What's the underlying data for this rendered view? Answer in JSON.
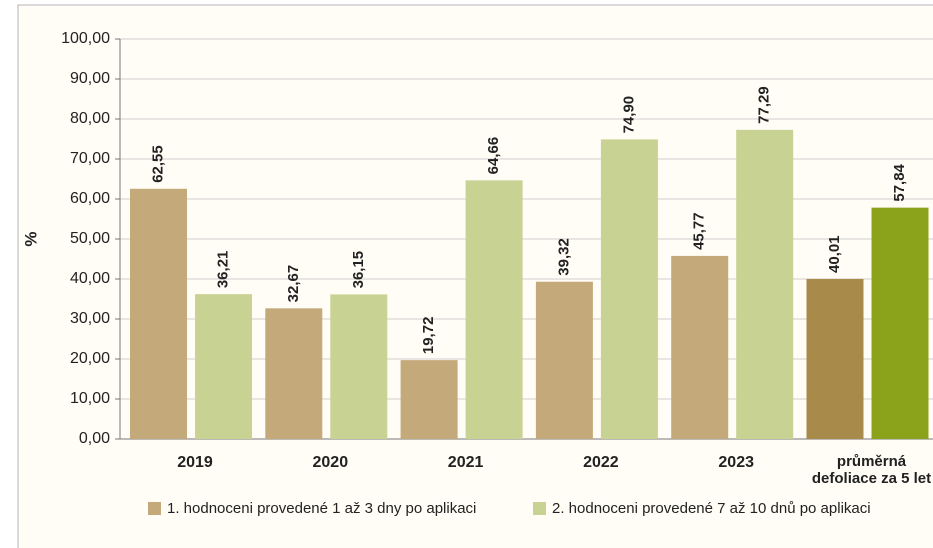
{
  "chart_data": {
    "type": "bar",
    "y_label": "%",
    "categories": [
      "2019",
      "2020",
      "2021",
      "2022",
      "2023",
      [
        "průměrná",
        "defoliace za 5 let"
      ]
    ],
    "series": [
      {
        "name": "1. hodnoceni provedené 1 až 3 dny po aplikaci",
        "color": "#c4a97b",
        "colors": [
          "#c4a97b",
          "#c4a97b",
          "#c4a97b",
          "#c4a97b",
          "#c4a97b",
          "#a88b4b"
        ],
        "values": [
          62.55,
          32.67,
          19.72,
          39.32,
          45.77,
          40.01
        ],
        "value_labels": [
          "62,55",
          "32,67",
          "19,72",
          "39,32",
          "45,77",
          "40,01"
        ]
      },
      {
        "name": "2. hodnoceni provedené 7 až 10 dnů po aplikaci",
        "color": "#c8d292",
        "colors": [
          "#c8d292",
          "#c8d292",
          "#c8d292",
          "#c8d292",
          "#c8d292",
          "#8ba31b"
        ],
        "values": [
          36.21,
          36.15,
          64.66,
          74.9,
          77.29,
          57.84
        ],
        "value_labels": [
          "36,21",
          "36,15",
          "64,66",
          "74,90",
          "77,29",
          "57,84"
        ]
      }
    ],
    "ylim": [
      0,
      100
    ],
    "yticks": [
      {
        "value": 0,
        "label": "0,00"
      },
      {
        "value": 10,
        "label": "10,00"
      },
      {
        "value": 20,
        "label": "20,00"
      },
      {
        "value": 30,
        "label": "30,00"
      },
      {
        "value": 40,
        "label": "40,00"
      },
      {
        "value": 50,
        "label": "50,00"
      },
      {
        "value": 60,
        "label": "60,00"
      },
      {
        "value": 70,
        "label": "70,00"
      },
      {
        "value": 80,
        "label": "80,00"
      },
      {
        "value": 90,
        "label": "90,00"
      },
      {
        "value": 100,
        "label": "100,00"
      }
    ],
    "grid": true
  }
}
